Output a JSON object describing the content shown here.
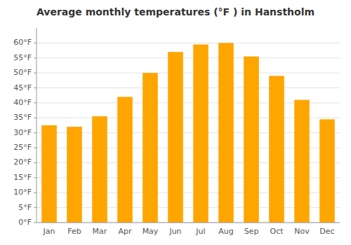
{
  "chart_data": {
    "type": "bar",
    "title": "Average monthly temperatures (°F ) in Hanstholm",
    "categories": [
      "Jan",
      "Feb",
      "Mar",
      "Apr",
      "May",
      "Jun",
      "Jul",
      "Aug",
      "Sep",
      "Oct",
      "Nov",
      "Dec"
    ],
    "values": [
      32.5,
      32.0,
      35.5,
      42.0,
      50.0,
      57.0,
      59.5,
      60.0,
      55.5,
      49.0,
      41.0,
      34.5
    ],
    "color": "#FFA500",
    "ylim": [
      0,
      65
    ],
    "yticks": [
      {
        "value": 0,
        "label": "0°F"
      },
      {
        "value": 5,
        "label": "5°F"
      },
      {
        "value": 10,
        "label": "10°F"
      },
      {
        "value": 15,
        "label": "15°F"
      },
      {
        "value": 20,
        "label": "20°F"
      },
      {
        "value": 25,
        "label": "25°F"
      },
      {
        "value": 30,
        "label": "30°F"
      },
      {
        "value": 35,
        "label": "35°F"
      },
      {
        "value": 40,
        "label": "40°F"
      },
      {
        "value": 45,
        "label": "45°F"
      },
      {
        "value": 50,
        "label": "50°F"
      },
      {
        "value": 55,
        "label": "55°F"
      },
      {
        "value": 60,
        "label": "60°F"
      }
    ],
    "grid": true
  }
}
